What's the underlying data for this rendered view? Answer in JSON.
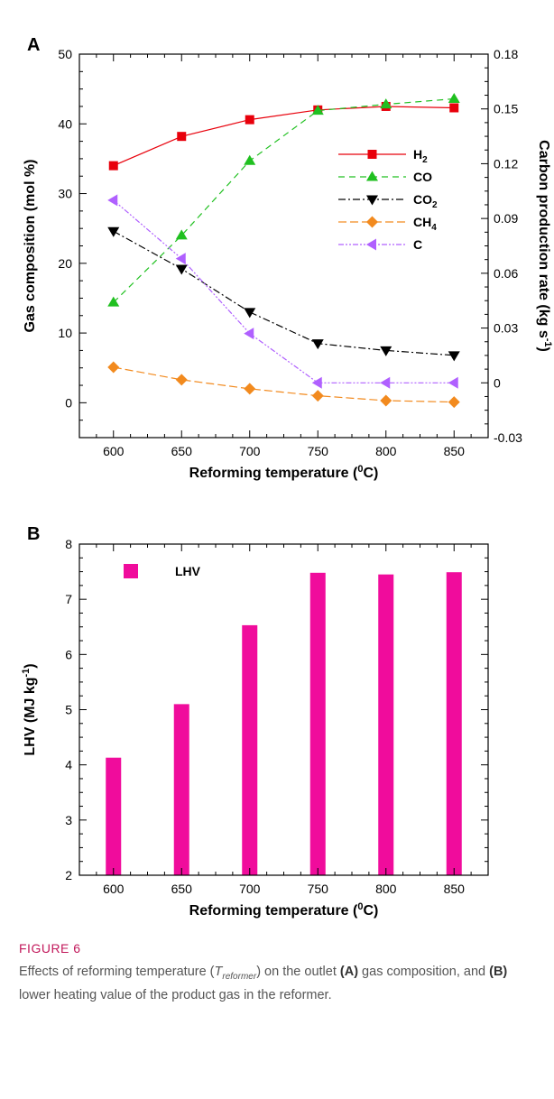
{
  "chart_data": [
    {
      "type": "line",
      "panel_label": "A",
      "xlabel": "Reforming temperature (°C)",
      "ylabel": "Gas composition (mol %)",
      "ylabel_right": "Carbon production rate (kg s⁻¹)",
      "x": [
        600,
        650,
        700,
        750,
        800,
        850
      ],
      "xlim": [
        575,
        875
      ],
      "ylim": [
        -5,
        50
      ],
      "y_ticks": [
        0,
        10,
        20,
        30,
        40,
        50
      ],
      "y2lim": [
        -0.03,
        0.18
      ],
      "y2_ticks": [
        "-0.03",
        "0",
        "0.03",
        "0.06",
        "0.09",
        "0.12",
        "0.15",
        "0.18"
      ],
      "grid": false,
      "legend_position": "center-right",
      "series": [
        {
          "name": "H2",
          "axis": "left",
          "values": [
            34.0,
            38.2,
            40.6,
            42.0,
            42.5,
            42.3
          ],
          "color": "#e8000b",
          "marker": "square",
          "dash": ""
        },
        {
          "name": "CO",
          "axis": "left",
          "values": [
            14.4,
            24.0,
            34.7,
            41.9,
            42.8,
            43.6
          ],
          "color": "#20c020",
          "marker": "triangle-up",
          "dash": "7,5"
        },
        {
          "name": "CO2",
          "axis": "left",
          "values": [
            24.6,
            19.2,
            13.0,
            8.5,
            7.5,
            6.8
          ],
          "color": "#000000",
          "marker": "triangle-down",
          "dash": "8,3,2,3"
        },
        {
          "name": "CH4",
          "axis": "left",
          "values": [
            5.1,
            3.3,
            2.0,
            1.0,
            0.3,
            0.1
          ],
          "color": "#f28a1e",
          "marker": "diamond",
          "dash": "9,4"
        },
        {
          "name": "C",
          "axis": "right",
          "values": [
            0.1,
            0.068,
            0.027,
            0.0,
            0.0,
            0.0
          ],
          "color": "#b060ff",
          "marker": "triangle-left",
          "dash": "6,2,2,2,2,2"
        }
      ]
    },
    {
      "type": "bar",
      "panel_label": "B",
      "xlabel": "Reforming temperature (°C)",
      "ylabel": "LHV (MJ kg⁻¹)",
      "categories": [
        "600",
        "650",
        "700",
        "750",
        "800",
        "850"
      ],
      "xlim": [
        575,
        875
      ],
      "ylim": [
        2,
        8
      ],
      "y_ticks": [
        2,
        3,
        4,
        5,
        6,
        7,
        8
      ],
      "grid": false,
      "legend_position": "top-left",
      "series": [
        {
          "name": "LHV",
          "values": [
            4.13,
            5.1,
            6.53,
            7.48,
            7.45,
            7.49
          ],
          "color": "#f00c9c"
        }
      ]
    }
  ],
  "caption": {
    "label": "FIGURE 6",
    "text": "Effects of reforming temperature (Treformer) on the outlet (A) gas composition, and (B) lower heating value of the product gas in the reformer."
  }
}
